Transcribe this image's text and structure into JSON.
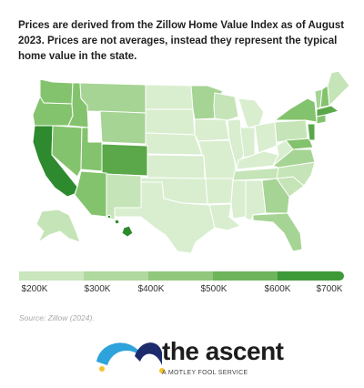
{
  "description": "Prices are derived from the Zillow Home Value Index as of August 2023. Prices are not averages, instead they represent the typical home value in the state.",
  "legend": {
    "colors": [
      "#c9e6bd",
      "#b0d99f",
      "#90c77b",
      "#6db45a",
      "#3e9938",
      "#2c8c2c"
    ],
    "ticks": [
      "$200K",
      "$300K",
      "$400K",
      "$500K",
      "$600K",
      "$700K"
    ]
  },
  "source": "Source: Zillow (2024).",
  "brand": {
    "name": "the ascent",
    "tagline": "A MOTLEY FOOL SERVICE",
    "mark_colors": [
      "#2ea3db",
      "#1c2b6b",
      "#f5c330"
    ]
  },
  "map_colors": {
    "tier1": "#d9eecf",
    "tier2": "#c5e4b7",
    "tier3": "#a6d494",
    "tier4": "#84c36d",
    "tier5": "#5aa84a",
    "tier6": "#2e8a2e"
  }
}
